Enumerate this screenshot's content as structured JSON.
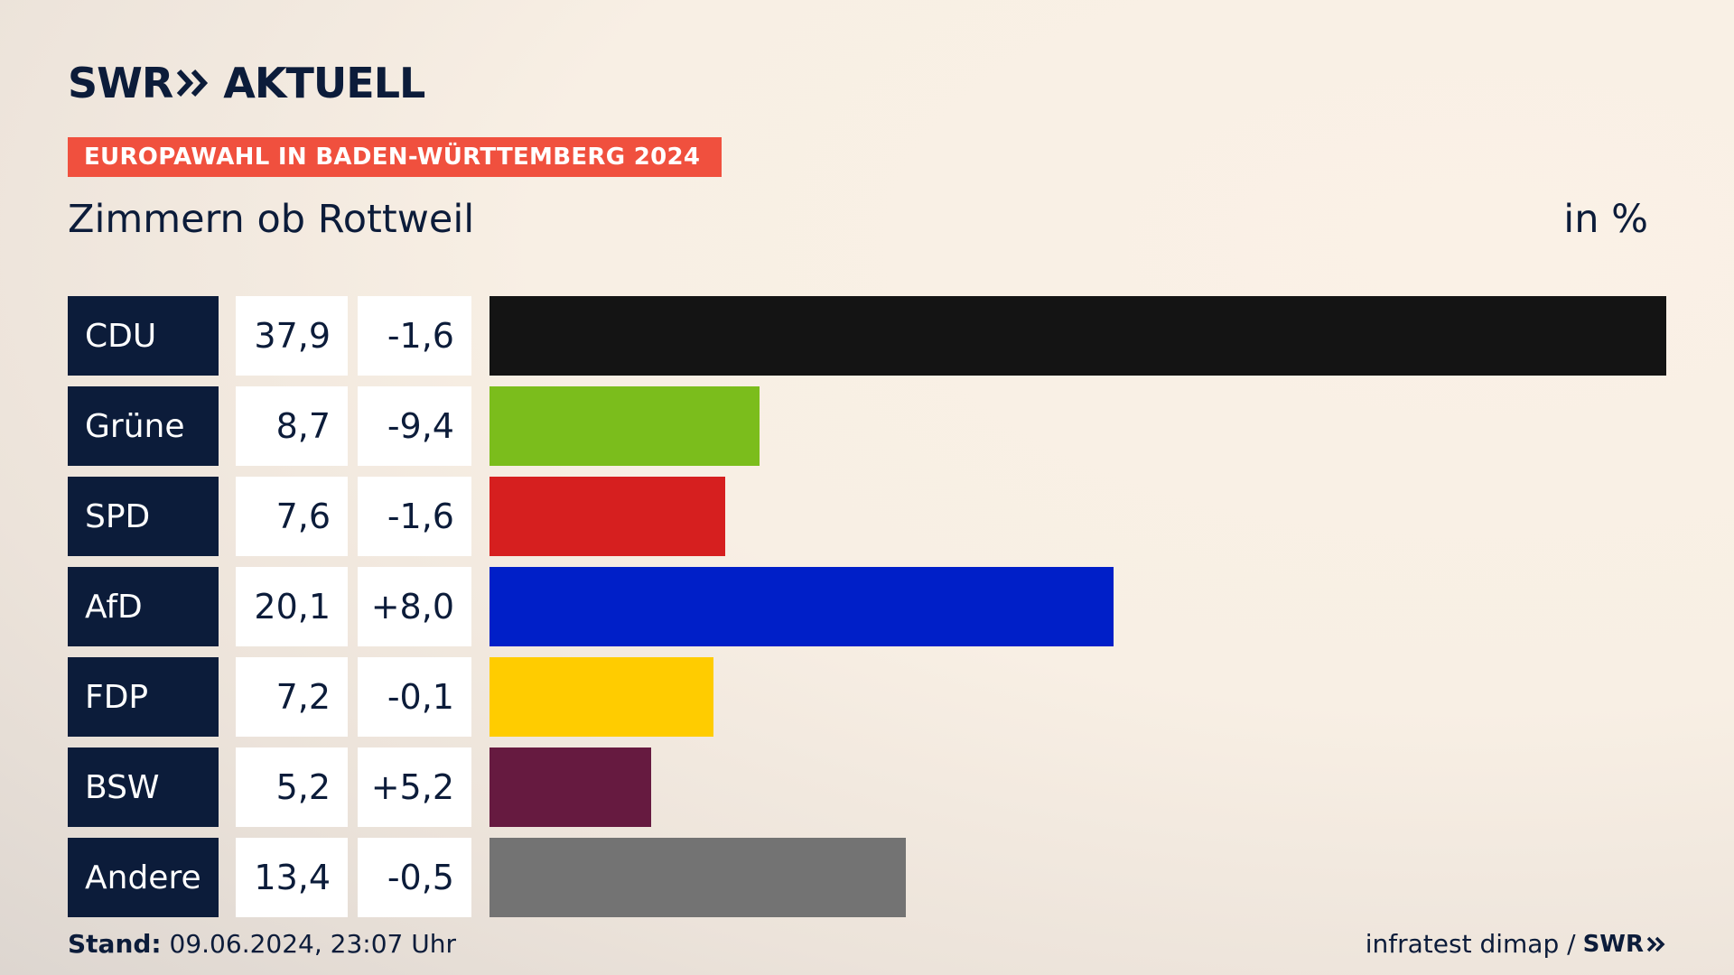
{
  "header": {
    "logo_left": "SWR",
    "logo_right": "AKTUELL",
    "badge": "EUROPAWAHL IN BADEN-WÜRTTEMBERG 2024",
    "place": "Zimmern ob Rottweil",
    "unit": "in %"
  },
  "footer": {
    "stand_label": "Stand:",
    "stand_value": "09.06.2024, 23:07 Uhr",
    "source": "infratest dimap /",
    "source_logo": "SWR"
  },
  "chart_data": {
    "type": "bar",
    "orientation": "horizontal",
    "categories": [
      "CDU",
      "Grüne",
      "SPD",
      "AfD",
      "FDP",
      "BSW",
      "Andere"
    ],
    "values": [
      37.9,
      8.7,
      7.6,
      20.1,
      7.2,
      5.2,
      13.4
    ],
    "value_labels": [
      "37,9",
      "8,7",
      "7,6",
      "20,1",
      "7,2",
      "5,2",
      "13,4"
    ],
    "diff_labels": [
      "-1,6",
      "-9,4",
      "-1,6",
      "+8,0",
      "-0,1",
      "+5,2",
      "-0,5"
    ],
    "colors": [
      "#141414",
      "#7bbd1c",
      "#d61f1f",
      "#001fc8",
      "#ffcc00",
      "#661a40",
      "#737373"
    ],
    "xlim": [
      0,
      37.9
    ],
    "title": "Zimmern ob Rottweil",
    "unit": "in %"
  }
}
